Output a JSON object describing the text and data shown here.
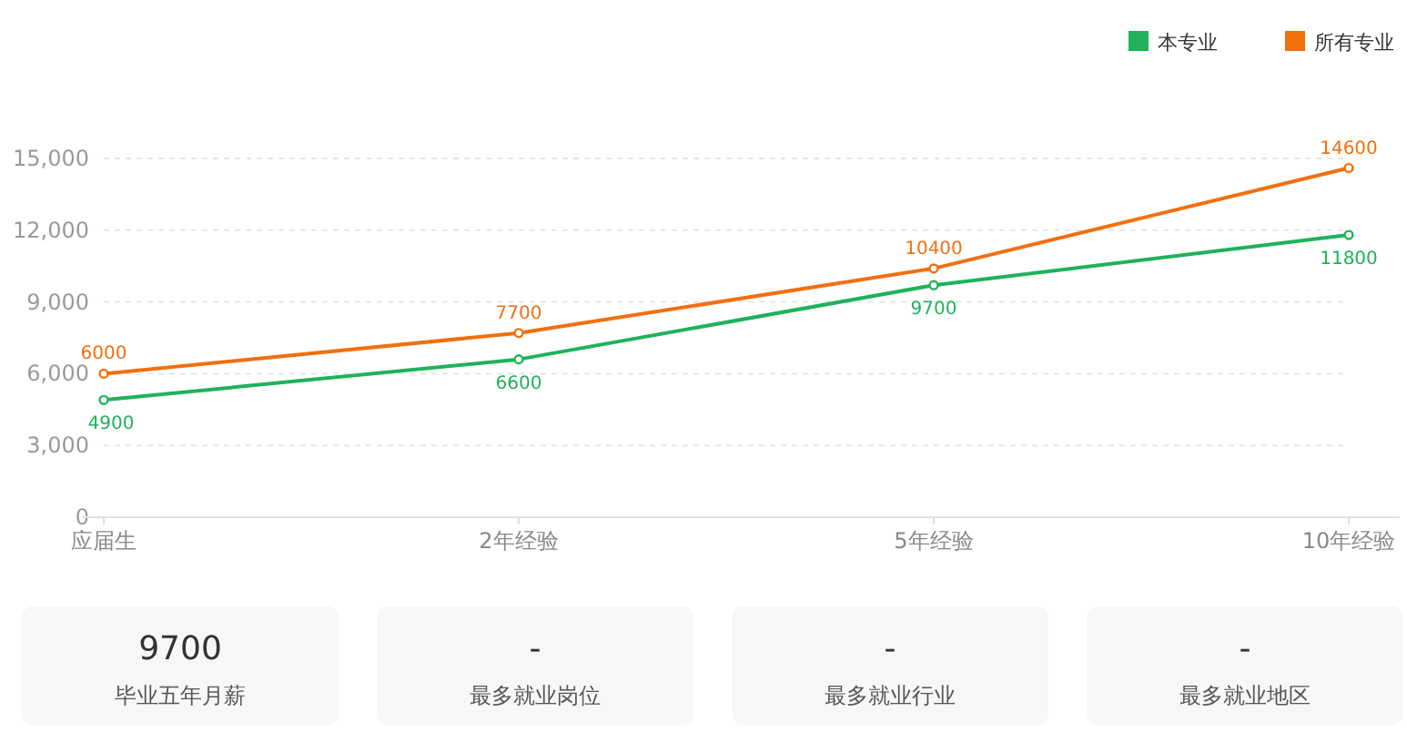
{
  "chart_data": [
    {
      "type": "line",
      "categories": [
        "应届生",
        "2年经验",
        "5年经验",
        "10年经验"
      ],
      "series": [
        {
          "name": "本专业",
          "color": "#1fb25a",
          "values": [
            4900,
            6600,
            9700,
            11800
          ]
        },
        {
          "name": "所有专业",
          "color": "#f0700f",
          "values": [
            6000,
            7700,
            10400,
            14600
          ]
        }
      ],
      "ylim": [
        0,
        15000
      ],
      "yticks": [
        0,
        {
          "value": 3000,
          "label": "3,000"
        },
        {
          "value": 6000,
          "label": "6,000"
        },
        {
          "value": 9000,
          "label": "9,000"
        },
        {
          "value": 12000,
          "label": "12,000"
        },
        {
          "value": 15000,
          "label": "15,000"
        }
      ],
      "grid": "y",
      "legend": "top right",
      "marker": "circle",
      "line_style": "solid",
      "data_labels": true
    },
    {
      "type": "other",
      "annotations": [
        "9700",
        "毕业五年月薪"
      ]
    },
    {
      "type": "other",
      "annotations": [
        "-",
        "最多就业岗位"
      ]
    },
    {
      "type": "other",
      "annotations": [
        "-",
        "最多就业行业"
      ]
    },
    {
      "type": "other",
      "annotations": [
        "-",
        "最多就业地区"
      ]
    }
  ]
}
